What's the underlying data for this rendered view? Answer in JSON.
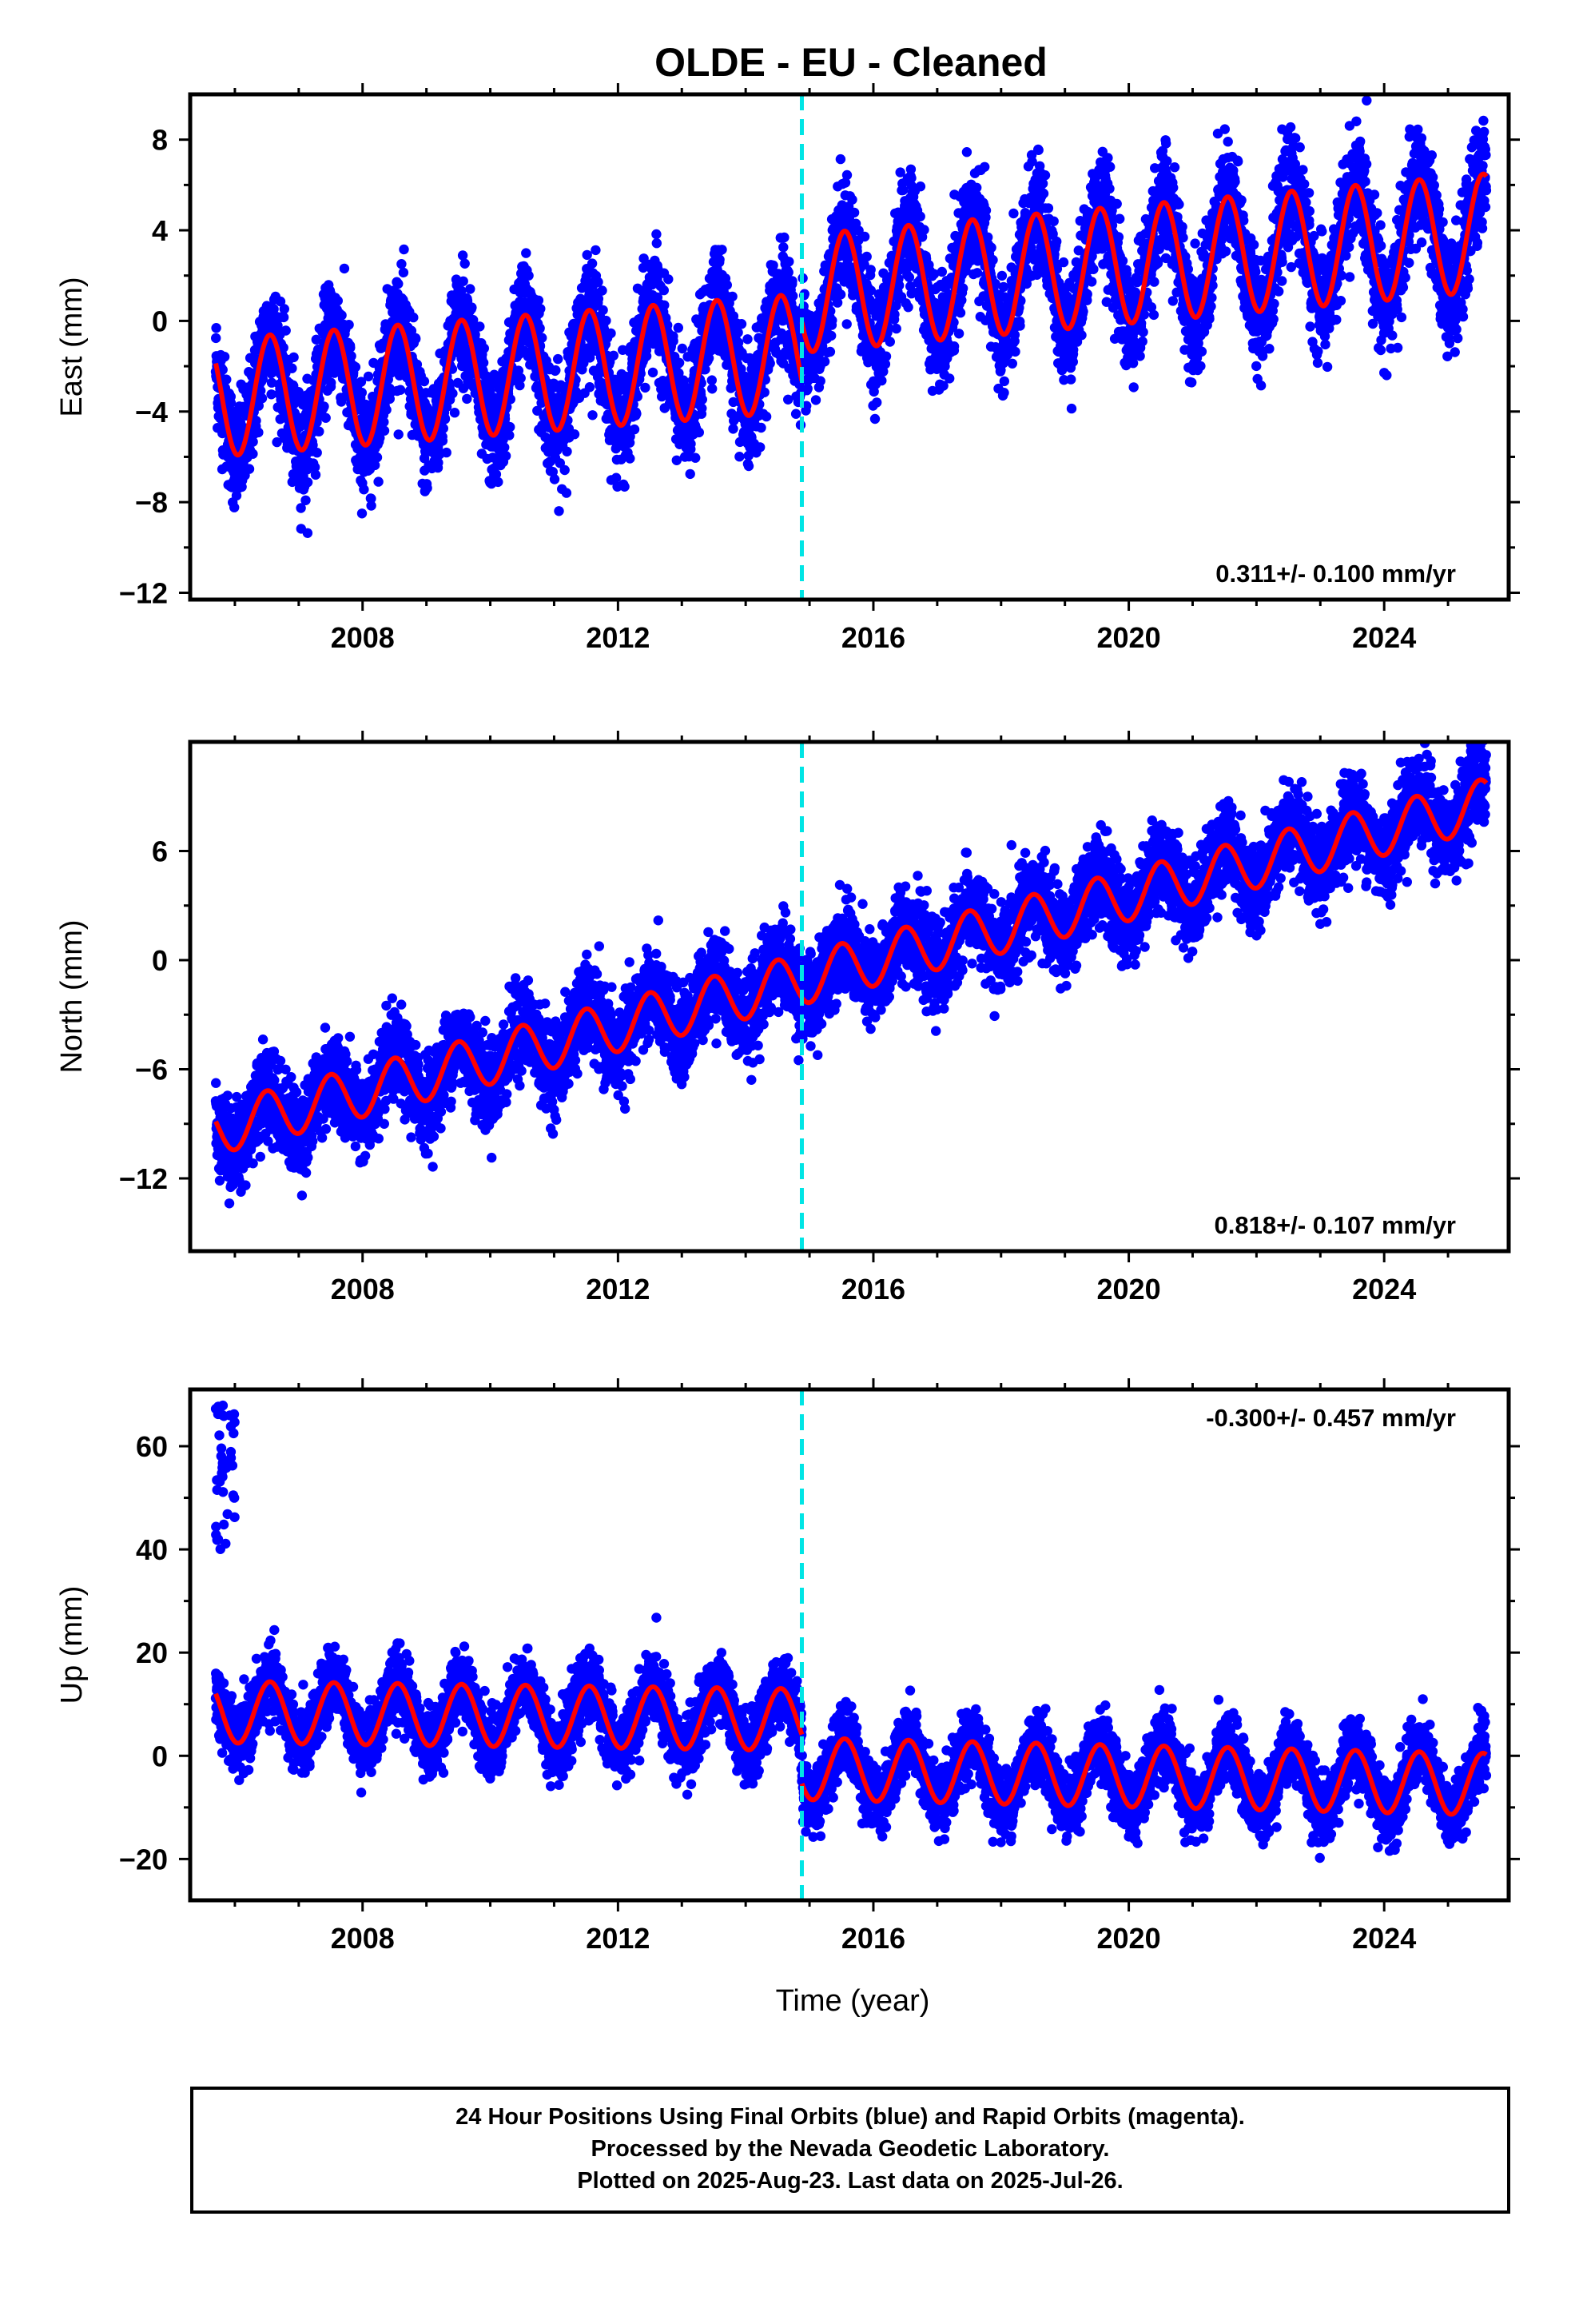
{
  "title": "OLDE  - EU - Cleaned",
  "xlabel": "Time (year)",
  "colors": {
    "final_orbit_points": "#0000ff",
    "fit_model": "#ff0000",
    "equipment_change": "#00e5e5",
    "frame": "#000000"
  },
  "chart_data": [
    {
      "type": "scatter",
      "panel": "east",
      "ylabel": "East (mm)",
      "rate_label": "0.311+/- 0.100 mm/yr",
      "rate_position": "bottom-right",
      "xlim": [
        2005.3,
        2025.95
      ],
      "ylim": [
        -12.3,
        10.0
      ],
      "xticks": [
        "2008",
        "2012",
        "2016",
        "2020",
        "2024"
      ],
      "yticks": [
        "8",
        "4",
        "0",
        "−4",
        "−8",
        "−12"
      ],
      "discontinuity_x": 2014.88,
      "segments": [
        {
          "x_start": 2005.7,
          "x_end": 2014.88,
          "trend_at_start": -3.4,
          "trend_at_end": -1.4,
          "annual_amplitude": 2.6,
          "annual_peak": 0.55,
          "scatter_sd": 1.2
        },
        {
          "x_start": 2014.88,
          "x_end": 2025.6,
          "trend_at_start": 1.2,
          "trend_at_end": 3.9,
          "annual_amplitude": 2.6,
          "annual_peak": 0.55,
          "scatter_sd": 1.2
        }
      ],
      "grid": false,
      "legend": "none"
    },
    {
      "type": "scatter",
      "panel": "north",
      "ylabel": "North (mm)",
      "rate_label": "0.818+/- 0.107 mm/yr",
      "rate_position": "bottom-right",
      "xlim": [
        2005.3,
        2025.95
      ],
      "ylim": [
        -16.0,
        12.0
      ],
      "xticks": [
        "2008",
        "2012",
        "2016",
        "2020",
        "2024"
      ],
      "yticks": [
        "6",
        "0",
        "−6",
        "−12"
      ],
      "segments": [
        {
          "x_start": 2005.7,
          "x_end": 2025.6,
          "trend_at_start": -9.3,
          "trend_at_end": 8.6,
          "annual_amplitude": 1.4,
          "annual_peak": 0.5,
          "scatter_sd": 1.2
        }
      ],
      "grid": false,
      "legend": "none"
    },
    {
      "type": "scatter",
      "panel": "up",
      "ylabel": "Up (mm)",
      "rate_label": "-0.300+/- 0.457 mm/yr",
      "rate_position": "top-right",
      "xlim": [
        2005.3,
        2025.95
      ],
      "ylim": [
        -28.0,
        71.0
      ],
      "xticks": [
        "2008",
        "2012",
        "2016",
        "2020",
        "2024"
      ],
      "yticks": [
        "60",
        "40",
        "20",
        "0",
        "−20"
      ],
      "segments": [
        {
          "x_start": 2005.7,
          "x_end": 2014.88,
          "trend_at_start": 8.5,
          "trend_at_end": 7.0,
          "annual_amplitude": 6.0,
          "annual_peak": 0.55,
          "scatter_sd": 3.2
        },
        {
          "x_start": 2014.88,
          "x_end": 2025.6,
          "trend_at_start": -2.5,
          "trend_at_end": -5.5,
          "annual_amplitude": 6.0,
          "annual_peak": 0.55,
          "scatter_sd": 3.2
        }
      ],
      "outliers": {
        "x_start": 2005.7,
        "x_end": 2006.0,
        "y_min": 40,
        "y_max": 68
      },
      "grid": false,
      "legend": "none"
    }
  ],
  "footer": {
    "line1": "24 Hour Positions Using Final Orbits (blue) and Rapid Orbits (magenta).",
    "line2": "Processed by the Nevada Geodetic Laboratory.",
    "line3": "Plotted on 2025-Aug-23. Last data on 2025-Jul-26."
  }
}
